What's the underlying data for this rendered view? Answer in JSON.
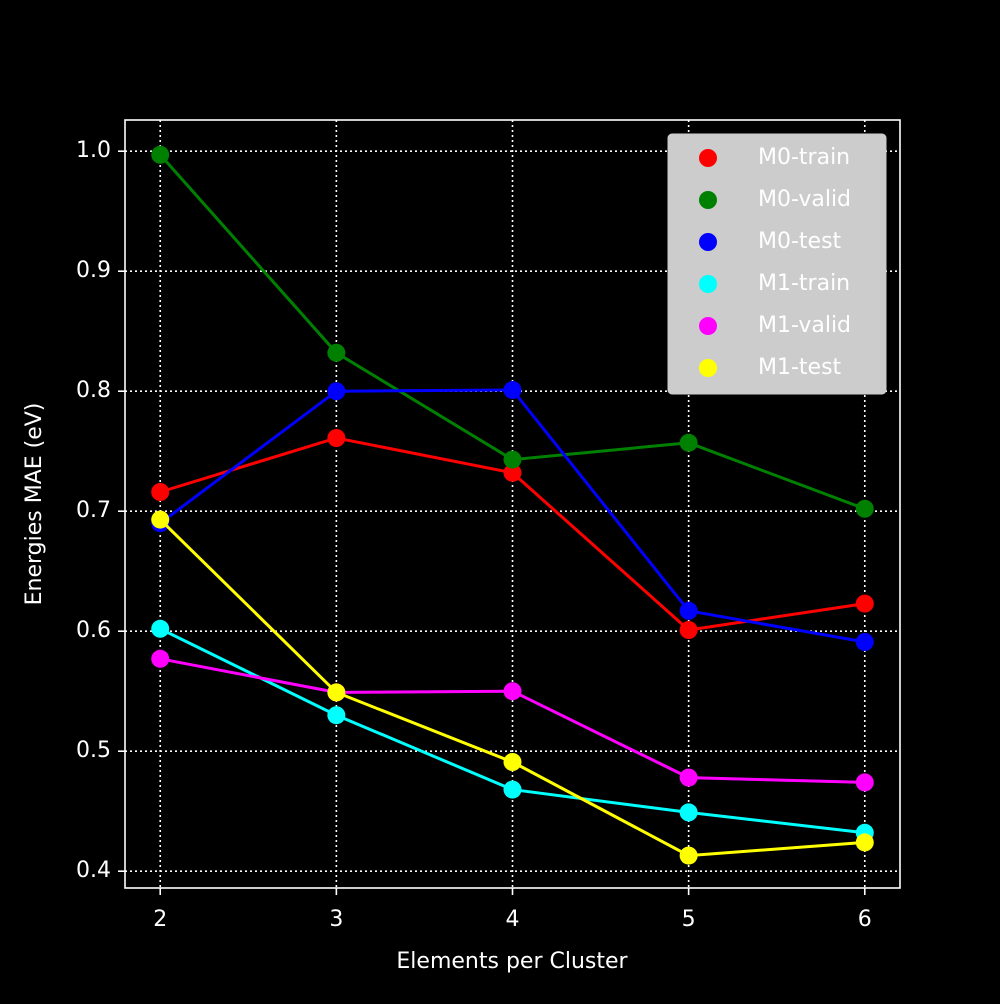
{
  "chart_data": {
    "type": "line",
    "xlabel": "Elements per Cluster",
    "ylabel": "Energies MAE (eV)",
    "x": [
      2,
      3,
      4,
      5,
      6
    ],
    "series": [
      {
        "name": "M0-train",
        "color": "#ff0000",
        "values": [
          0.716,
          0.761,
          0.732,
          0.601,
          0.623
        ]
      },
      {
        "name": "M0-valid",
        "color": "#008000",
        "values": [
          0.997,
          0.832,
          0.743,
          0.757,
          0.702
        ]
      },
      {
        "name": "M0-test",
        "color": "#0000ff",
        "values": [
          0.69,
          0.8,
          0.801,
          0.617,
          0.591
        ]
      },
      {
        "name": "M1-train",
        "color": "#00ffff",
        "values": [
          0.602,
          0.53,
          0.468,
          0.449,
          0.432
        ]
      },
      {
        "name": "M1-valid",
        "color": "#ff00ff",
        "values": [
          0.577,
          0.549,
          0.55,
          0.478,
          0.474
        ]
      },
      {
        "name": "M1-test",
        "color": "#ffff00",
        "values": [
          0.693,
          0.549,
          0.491,
          0.413,
          0.424
        ]
      }
    ],
    "xlim": [
      1.8,
      6.2
    ],
    "ylim": [
      0.386,
      1.026
    ],
    "xticks": [
      2,
      3,
      4,
      5,
      6
    ],
    "yticks": [
      0.4,
      0.5,
      0.6,
      0.7,
      0.8,
      0.9,
      {
        "value": 1,
        "label": "1.0"
      }
    ],
    "grid": true,
    "legend": "upper right"
  }
}
